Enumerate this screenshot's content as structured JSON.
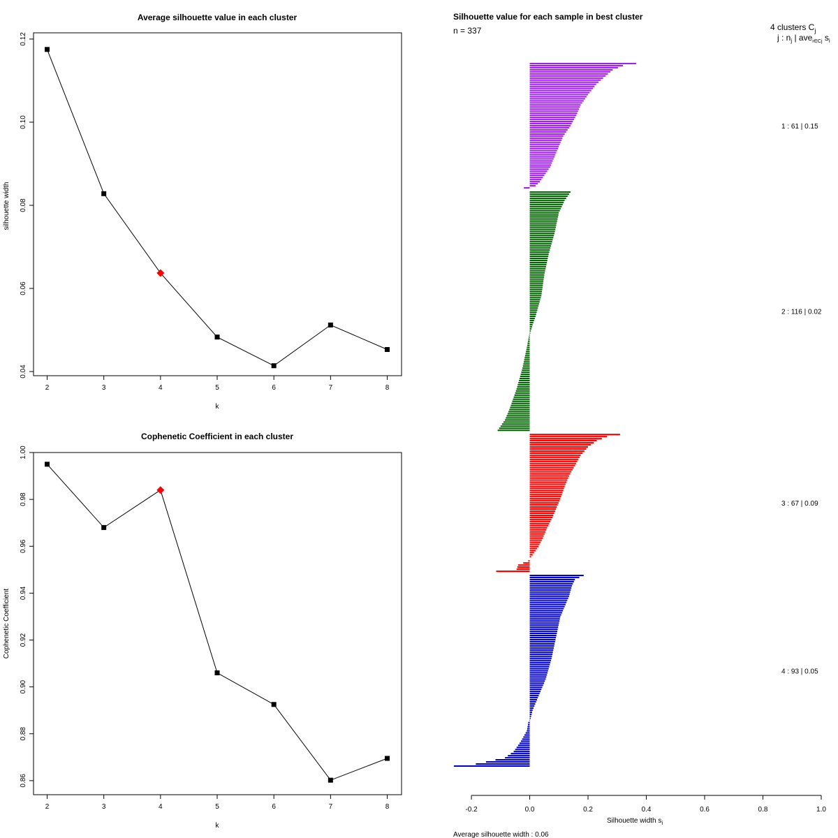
{
  "chart_data": [
    {
      "id": "avg_silhouette",
      "type": "line",
      "title": "Average silhouette value in each cluster",
      "xlabel": "k",
      "ylabel": "silhouette width",
      "x": [
        2,
        3,
        4,
        5,
        6,
        7,
        8
      ],
      "values": [
        0.1175,
        0.0828,
        0.0637,
        0.0483,
        0.0414,
        0.0512,
        0.0453
      ],
      "highlight_x": 4,
      "highlight_color": "#ff0000",
      "ylim": [
        0.039,
        0.1215
      ],
      "yticks": [
        0.04,
        0.06,
        0.08,
        0.1,
        0.12
      ],
      "ytick_labels": [
        "0.04",
        "0.06",
        "0.08",
        "0.10",
        "0.12"
      ]
    },
    {
      "id": "cophenetic",
      "type": "line",
      "title": "Cophenetic Coefficient in each cluster",
      "xlabel": "k",
      "ylabel": "Cophenetic Coefficient",
      "x": [
        2,
        3,
        4,
        5,
        6,
        7,
        8
      ],
      "values": [
        0.995,
        0.968,
        0.984,
        0.906,
        0.8925,
        0.8602,
        0.8695
      ],
      "highlight_x": 4,
      "highlight_color": "#ff0000",
      "ylim": [
        0.854,
        1.0
      ],
      "yticks": [
        0.86,
        0.88,
        0.9,
        0.92,
        0.94,
        0.96,
        0.98,
        1.0
      ],
      "ytick_labels": [
        "0.86",
        "0.88",
        "0.90",
        "0.92",
        "0.94",
        "0.96",
        "0.98",
        "1.00"
      ]
    },
    {
      "id": "silhouette_samples",
      "type": "bar",
      "orientation": "horizontal",
      "title": "Silhouette value for each sample in best cluster",
      "n_label": "n = 337",
      "header_line1": "4  clusters  C",
      "header_sub1": "j",
      "header_line2": "j :  n",
      "header_sub2a": "j",
      "header_line2b": " | ave",
      "header_sub2b": "i∈Cj",
      "header_line2c": "  s",
      "header_sub2c": "i",
      "xlabel": "Silhouette width s",
      "xlabel_sub": "i",
      "footer": "Average silhouette width :  0.06",
      "xlim": [
        -0.26,
        1.0
      ],
      "xticks": [
        -0.2,
        0.0,
        0.2,
        0.4,
        0.6,
        0.8,
        1.0
      ],
      "xtick_labels": [
        "-0.2",
        "0.0",
        "0.2",
        "0.4",
        "0.6",
        "0.8",
        "1.0"
      ],
      "clusters": [
        {
          "label": "1 :  61  |  0.15",
          "color": "#a020f0",
          "n": 61,
          "avg": 0.15,
          "anchors": [
            [
              0,
              0.365
            ],
            [
              1,
              0.32
            ],
            [
              3,
              0.285
            ],
            [
              6,
              0.26
            ],
            [
              10,
              0.228
            ],
            [
              15,
              0.2
            ],
            [
              20,
              0.175
            ],
            [
              25,
              0.16
            ],
            [
              30,
              0.14
            ],
            [
              35,
              0.115
            ],
            [
              40,
              0.1
            ],
            [
              45,
              0.085
            ],
            [
              50,
              0.07
            ],
            [
              54,
              0.05
            ],
            [
              57,
              0.035
            ],
            [
              59,
              0.02
            ],
            [
              60,
              -0.02
            ]
          ]
        },
        {
          "label": "2 :  116  |  0.02",
          "color": "#006400",
          "n": 116,
          "avg": 0.02,
          "anchors": [
            [
              0,
              0.14
            ],
            [
              4,
              0.12
            ],
            [
              10,
              0.1
            ],
            [
              20,
              0.085
            ],
            [
              30,
              0.065
            ],
            [
              40,
              0.05
            ],
            [
              50,
              0.04
            ],
            [
              55,
              0.03
            ],
            [
              60,
              0.02
            ],
            [
              64,
              0.01
            ],
            [
              68,
              0.002
            ],
            [
              69,
              -0.002
            ],
            [
              75,
              -0.01
            ],
            [
              85,
              -0.025
            ],
            [
              95,
              -0.045
            ],
            [
              105,
              -0.07
            ],
            [
              110,
              -0.085
            ],
            [
              115,
              -0.11
            ]
          ]
        },
        {
          "label": "3 :  67  |  0.09",
          "color": "#ff0000",
          "n": 67,
          "avg": 0.09,
          "anchors": [
            [
              0,
              0.31
            ],
            [
              1,
              0.265
            ],
            [
              3,
              0.23
            ],
            [
              6,
              0.2
            ],
            [
              10,
              0.175
            ],
            [
              15,
              0.155
            ],
            [
              20,
              0.135
            ],
            [
              25,
              0.12
            ],
            [
              30,
              0.108
            ],
            [
              35,
              0.093
            ],
            [
              40,
              0.078
            ],
            [
              45,
              0.06
            ],
            [
              50,
              0.045
            ],
            [
              54,
              0.03
            ],
            [
              57,
              0.015
            ],
            [
              59,
              0.005
            ],
            [
              60,
              0.0
            ],
            [
              61,
              -0.005
            ],
            [
              63,
              -0.04
            ],
            [
              65,
              -0.045
            ],
            [
              66,
              -0.115
            ]
          ]
        },
        {
          "label": "4 :  93  |  0.05",
          "color": "#0000cd",
          "n": 93,
          "avg": 0.05,
          "anchors": [
            [
              0,
              0.185
            ],
            [
              2,
              0.155
            ],
            [
              5,
              0.145
            ],
            [
              10,
              0.135
            ],
            [
              15,
              0.12
            ],
            [
              20,
              0.105
            ],
            [
              30,
              0.09
            ],
            [
              40,
              0.075
            ],
            [
              50,
              0.055
            ],
            [
              55,
              0.04
            ],
            [
              60,
              0.025
            ],
            [
              65,
              0.01
            ],
            [
              69,
              0.003
            ],
            [
              71,
              -0.005
            ],
            [
              75,
              -0.01
            ],
            [
              80,
              -0.03
            ],
            [
              85,
              -0.055
            ],
            [
              88,
              -0.085
            ],
            [
              90,
              -0.15
            ],
            [
              91,
              -0.185
            ],
            [
              92,
              -0.26
            ]
          ]
        }
      ]
    }
  ]
}
